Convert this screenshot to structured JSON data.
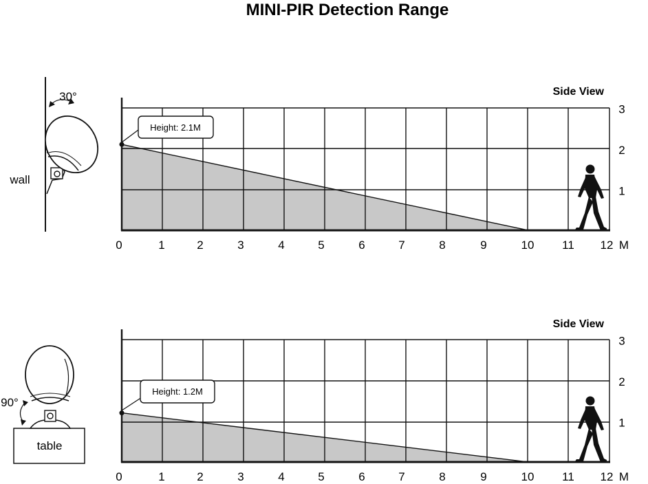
{
  "title": "MINI-PIR Detection Range",
  "colors": {
    "coverage": "#c8c8c8",
    "line": "#111111"
  },
  "panels": [
    {
      "view_label": "Side View",
      "mount_label": "wall",
      "angle_label": "30°",
      "height_label": "Height: 2.1M",
      "sensor_height_m": 2.1,
      "range_m": 10,
      "x_ticks": [
        "0",
        "1",
        "2",
        "3",
        "4",
        "5",
        "6",
        "7",
        "8",
        "9",
        "10",
        "11",
        "12"
      ],
      "x_unit": "M",
      "y_ticks": [
        "1",
        "2",
        "3"
      ]
    },
    {
      "view_label": "Side View",
      "mount_label": "table",
      "angle_label": "90°",
      "height_label": "Height: 1.2M",
      "sensor_height_m": 1.2,
      "range_m": 10,
      "x_ticks": [
        "0",
        "1",
        "2",
        "3",
        "4",
        "5",
        "6",
        "7",
        "8",
        "9",
        "10",
        "11",
        "12"
      ],
      "x_unit": "M",
      "y_ticks": [
        "1",
        "2",
        "3"
      ]
    }
  ]
}
